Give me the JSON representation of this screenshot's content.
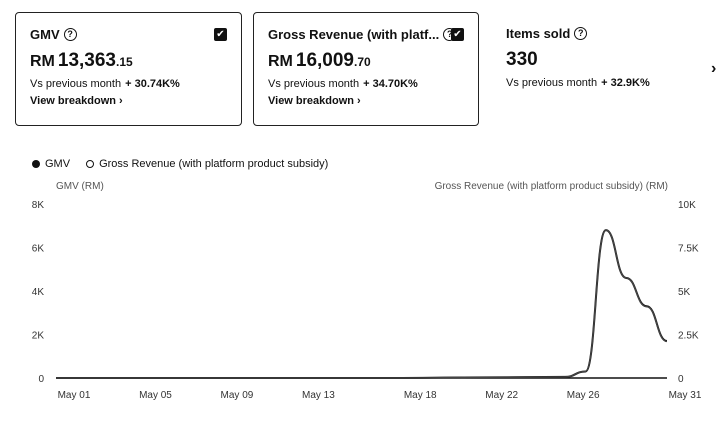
{
  "cards": [
    {
      "title": "GMV",
      "currency": "RM",
      "value_main": "13,363",
      "value_dec": ".15",
      "compare_label": "Vs previous month",
      "change": "+ 30.74K%",
      "link": "View breakdown ›",
      "checked": true
    },
    {
      "title": "Gross Revenue (with platf...",
      "currency": "RM",
      "value_main": "16,009",
      "value_dec": ".70",
      "compare_label": "Vs previous month",
      "change": "+ 34.70K%",
      "link": "View breakdown ›",
      "checked": true
    },
    {
      "title": "Items sold",
      "value_main": "330",
      "compare_label": "Vs previous month",
      "change": "+ 32.9K%"
    }
  ],
  "nav": {
    "next_icon": "chevron-right-icon",
    "next_symbol": "›"
  },
  "legend": {
    "gmv": "GMV",
    "gross_revenue": "Gross Revenue (with platform product subsidy)"
  },
  "chart_data": {
    "type": "line",
    "y_left_label": "GMV (RM)",
    "y_right_label": "Gross Revenue (with platform product subsidy) (RM)",
    "y_left_ticks": [
      "0",
      "2K",
      "4K",
      "6K",
      "8K"
    ],
    "y_right_ticks": [
      "0",
      "2.5K",
      "5K",
      "7.5K",
      "10K"
    ],
    "y_left_range": [
      0,
      8000
    ],
    "y_right_range": [
      0,
      10000
    ],
    "x_tick_labels": [
      "May 01",
      "May 05",
      "May 09",
      "May 13",
      "May 18",
      "May 22",
      "May 26",
      "May 31"
    ],
    "series": [
      {
        "name": "GMV",
        "axis": "left",
        "x": [
          "May 01",
          "May 05",
          "May 09",
          "May 13",
          "May 18",
          "May 22",
          "May 26",
          "May 27",
          "May 28",
          "May 29",
          "May 30",
          "May 31"
        ],
        "values": [
          0,
          0,
          0,
          0,
          0,
          30,
          50,
          300,
          6800,
          4600,
          3300,
          1700
        ]
      },
      {
        "name": "Gross Revenue (with platform product subsidy)",
        "axis": "right",
        "x": [
          "May 01",
          "May 05",
          "May 09",
          "May 13",
          "May 18",
          "May 22",
          "May 26",
          "May 27",
          "May 28",
          "May 29",
          "May 30",
          "May 31"
        ],
        "values": [
          0,
          0,
          0,
          0,
          0,
          40,
          60,
          380,
          8500,
          5750,
          4100,
          2100
        ]
      }
    ]
  }
}
